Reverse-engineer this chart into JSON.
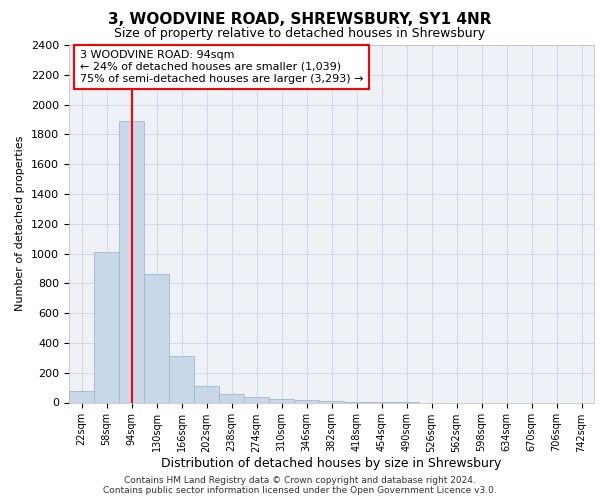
{
  "title": "3, WOODVINE ROAD, SHREWSBURY, SY1 4NR",
  "subtitle": "Size of property relative to detached houses in Shrewsbury",
  "xlabel": "Distribution of detached houses by size in Shrewsbury",
  "ylabel": "Number of detached properties",
  "footer_line1": "Contains HM Land Registry data © Crown copyright and database right 2024.",
  "footer_line2": "Contains public sector information licensed under the Open Government Licence v3.0.",
  "categories": [
    "22sqm",
    "58sqm",
    "94sqm",
    "130sqm",
    "166sqm",
    "202sqm",
    "238sqm",
    "274sqm",
    "310sqm",
    "346sqm",
    "382sqm",
    "418sqm",
    "454sqm",
    "490sqm",
    "526sqm",
    "562sqm",
    "598sqm",
    "634sqm",
    "670sqm",
    "706sqm",
    "742sqm"
  ],
  "bar_values": [
    80,
    1010,
    1890,
    860,
    310,
    110,
    55,
    40,
    25,
    15,
    8,
    3,
    2,
    1,
    0,
    0,
    0,
    0,
    0,
    0,
    0
  ],
  "bar_color": "#c8d8e8",
  "bar_edge_color": "#a0b8cc",
  "ylim": [
    0,
    2400
  ],
  "yticks": [
    0,
    200,
    400,
    600,
    800,
    1000,
    1200,
    1400,
    1600,
    1800,
    2000,
    2200,
    2400
  ],
  "red_line_index": 2,
  "annotation_line1": "3 WOODVINE ROAD: 94sqm",
  "annotation_line2": "← 24% of detached houses are smaller (1,039)",
  "annotation_line3": "75% of semi-detached houses are larger (3,293) →",
  "annotation_box_facecolor": "white",
  "annotation_box_edgecolor": "red",
  "grid_color": "#d0d8e8",
  "plot_bg_color": "#eef2f7",
  "fig_bg_color": "#ffffff",
  "title_fontsize": 11,
  "subtitle_fontsize": 9,
  "ylabel_fontsize": 8,
  "xlabel_fontsize": 9,
  "tick_fontsize": 8,
  "xtick_fontsize": 7,
  "footer_fontsize": 6.5,
  "annot_fontsize": 8
}
